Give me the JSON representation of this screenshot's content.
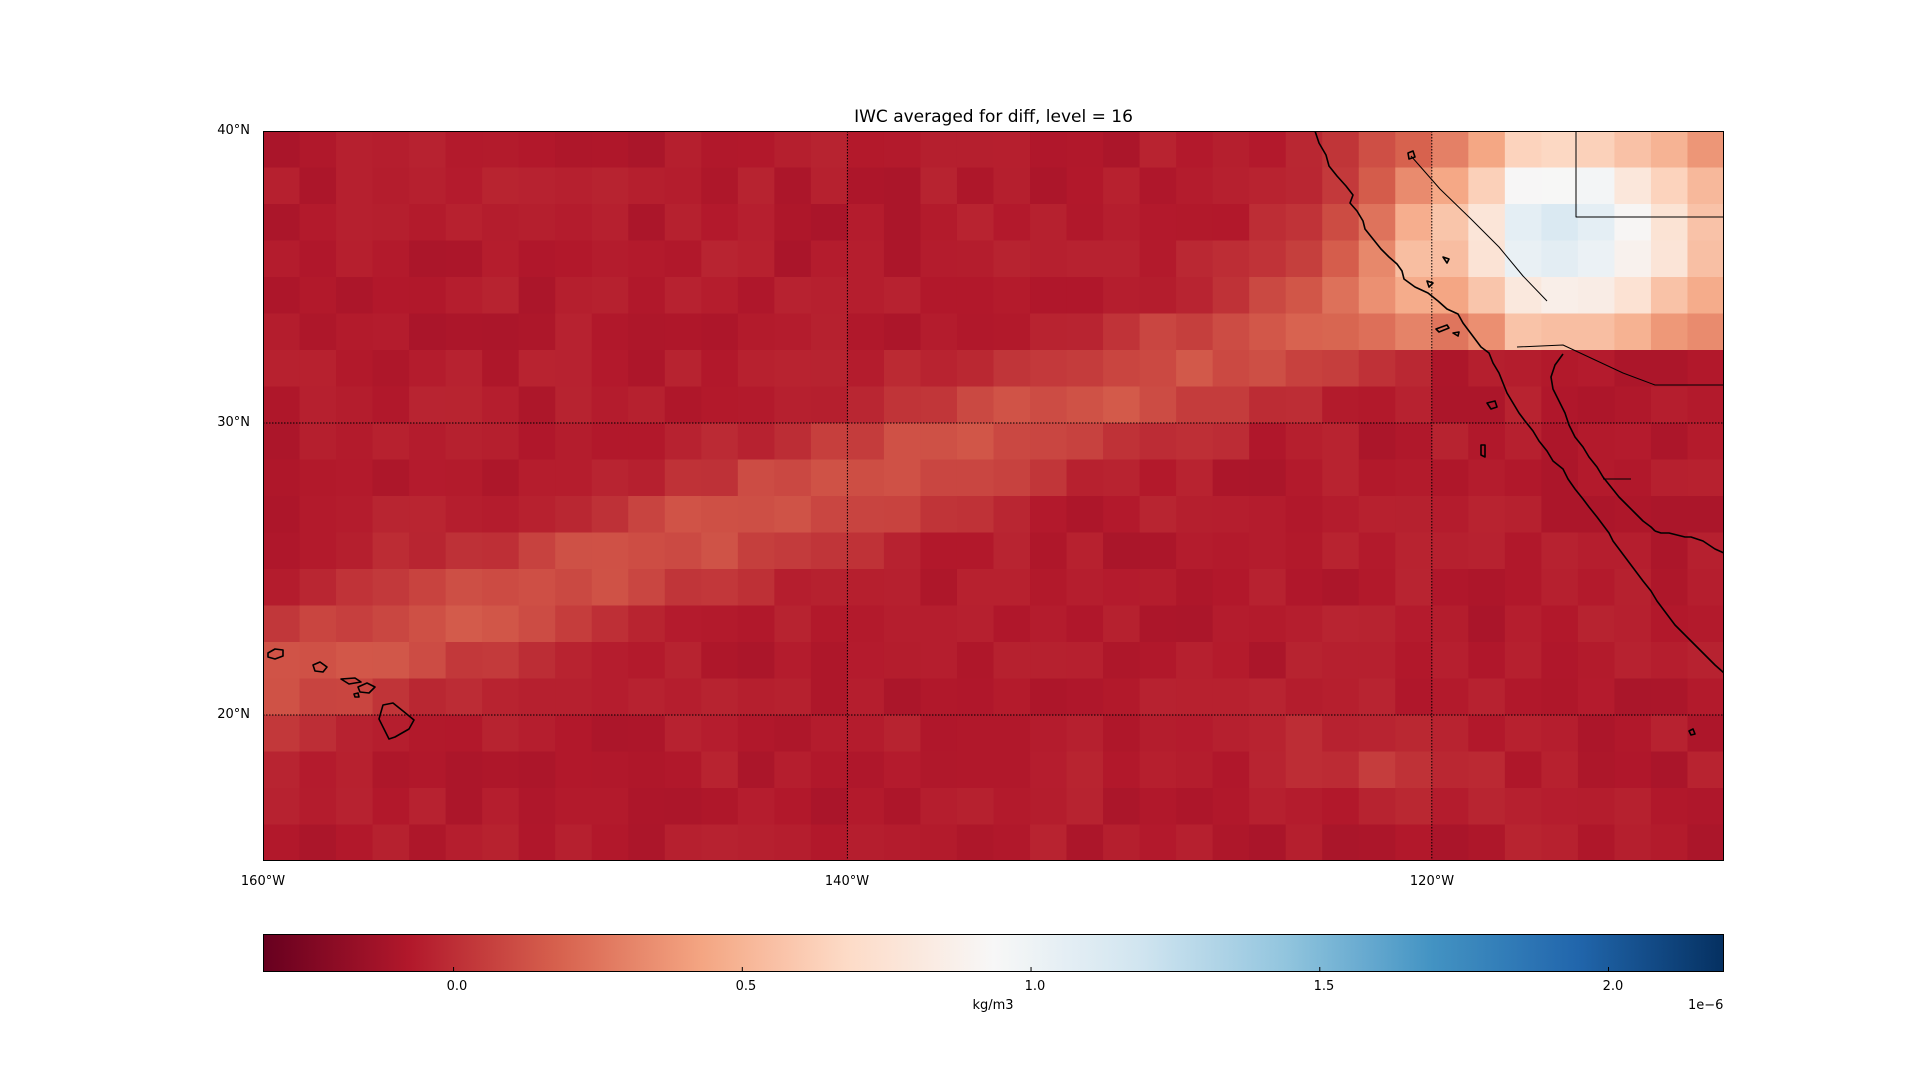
{
  "title": "IWC averaged for diff, level = 16",
  "map": {
    "lat_range": [
      15,
      40
    ],
    "lon_range": [
      -160,
      -110
    ],
    "lat_gridlines": [
      20,
      30
    ],
    "lon_gridlines": [
      -140,
      -120
    ],
    "lat_labels": [
      {
        "value": 40,
        "text": "40°N"
      },
      {
        "value": 30,
        "text": "30°N"
      },
      {
        "value": 20,
        "text": "20°N"
      }
    ],
    "lon_labels": [
      {
        "value": -160,
        "text": "160°W"
      },
      {
        "value": -140,
        "text": "140°W"
      },
      {
        "value": -120,
        "text": "120°W"
      }
    ],
    "cell_size_deg": 1.25,
    "coastline_color": "#000000"
  },
  "colorbar": {
    "colormap": "RdBu",
    "vmin": -0.33,
    "vmax": 2.2,
    "ticks": [
      {
        "value": 0.0,
        "text": "0.0"
      },
      {
        "value": 0.5,
        "text": "0.5"
      },
      {
        "value": 1.0,
        "text": "1.0"
      },
      {
        "value": 1.5,
        "text": "1.5"
      },
      {
        "value": 2.0,
        "text": "2.0"
      }
    ],
    "unit_label": "kg/m3",
    "exponent_label": "1e−6"
  }
}
